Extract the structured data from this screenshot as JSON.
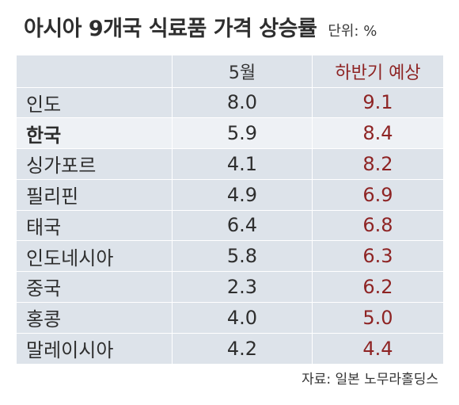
{
  "title": "아시아 9개국 식료품 가격 상승률",
  "unit": "단위: %",
  "chart_data": {
    "type": "table",
    "columns": [
      "",
      "5월",
      "하반기 예상"
    ],
    "rows": [
      {
        "country": "인도",
        "may": "8.0",
        "forecast": "9.1",
        "highlight": false
      },
      {
        "country": "한국",
        "may": "5.9",
        "forecast": "8.4",
        "highlight": true
      },
      {
        "country": "싱가포르",
        "may": "4.1",
        "forecast": "8.2",
        "highlight": false
      },
      {
        "country": "필리핀",
        "may": "4.9",
        "forecast": "6.9",
        "highlight": false
      },
      {
        "country": "태국",
        "may": "6.4",
        "forecast": "6.8",
        "highlight": false
      },
      {
        "country": "인도네시아",
        "may": "5.8",
        "forecast": "6.3",
        "highlight": false
      },
      {
        "country": "중국",
        "may": "2.3",
        "forecast": "6.2",
        "highlight": false
      },
      {
        "country": "홍콩",
        "may": "4.0",
        "forecast": "5.0",
        "highlight": false
      },
      {
        "country": "말레이시아",
        "may": "4.2",
        "forecast": "4.4",
        "highlight": false
      }
    ]
  },
  "source": "자료: 일본 노무라홀딩스",
  "colors": {
    "table_bg": "#dde3ea",
    "highlight_row": "#eef1f5",
    "forecast_red": "#8e2424"
  }
}
